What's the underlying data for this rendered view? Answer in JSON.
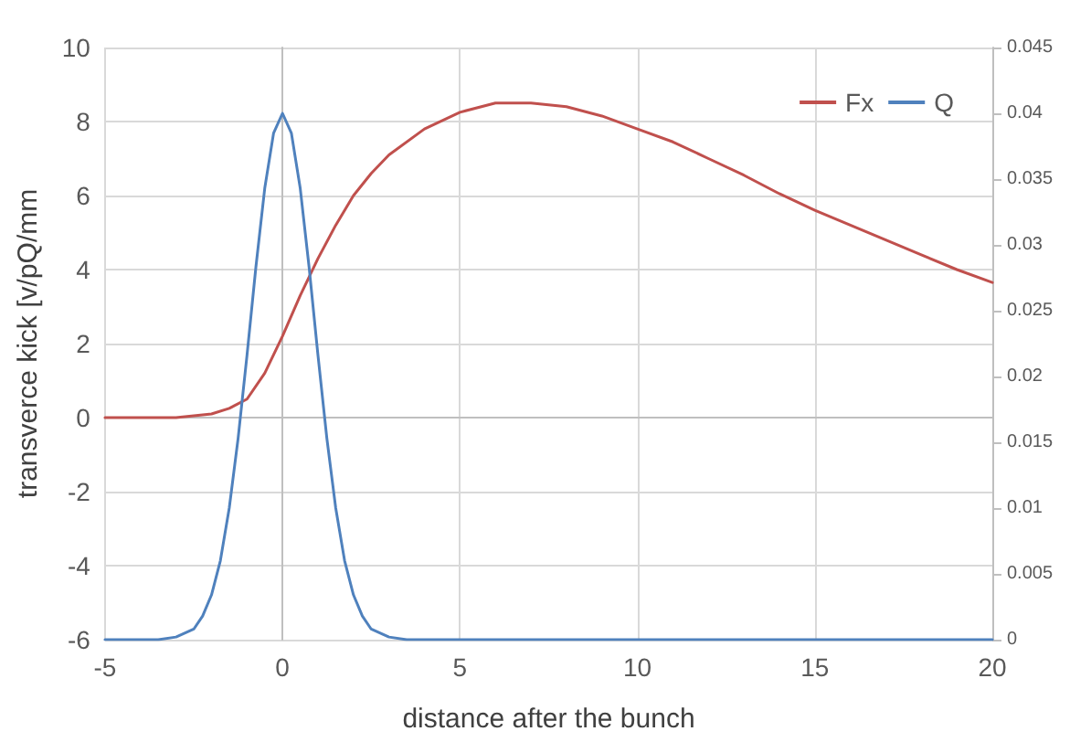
{
  "chart_data": {
    "type": "line",
    "xlabel": "distance after the bunch",
    "ylabel": "transverce kick [v/pQ/mm",
    "xlim": [
      -5,
      20
    ],
    "xticks": [
      -5,
      0,
      5,
      10,
      15,
      20
    ],
    "ylim": [
      -6,
      10
    ],
    "yticks": [
      -6,
      -4,
      -2,
      0,
      2,
      4,
      6,
      8,
      10
    ],
    "y2lim": [
      0,
      0.045
    ],
    "y2ticks": [
      0,
      0.005,
      0.01,
      0.015,
      0.02,
      0.025,
      0.03,
      0.035,
      0.04,
      0.045
    ],
    "grid": true,
    "legend": "top right",
    "marker": "none",
    "line_style": "solid",
    "series": [
      {
        "name": "Fx",
        "color": "#c0504d",
        "x": [
          -5,
          -3,
          -2,
          -1.5,
          -1,
          -0.5,
          0,
          0.5,
          1,
          1.5,
          2,
          2.5,
          3,
          4,
          5,
          6,
          7,
          8,
          9,
          10,
          11,
          12,
          13,
          14,
          15,
          16,
          17,
          18,
          19,
          20
        ],
        "values": [
          0,
          0,
          0.1,
          0.25,
          0.5,
          1.2,
          2.2,
          3.3,
          4.3,
          5.2,
          6.0,
          6.6,
          7.1,
          7.8,
          8.25,
          8.5,
          8.5,
          8.4,
          8.15,
          7.8,
          7.45,
          7.0,
          6.55,
          6.05,
          5.6,
          5.2,
          4.8,
          4.4,
          4.0,
          3.65
        ]
      },
      {
        "name": "Q",
        "color": "#4f81bd",
        "axis": "y2",
        "x": [
          -5,
          -3.5,
          -3,
          -2.5,
          -2.25,
          -2,
          -1.75,
          -1.5,
          -1.25,
          -1,
          -0.75,
          -0.5,
          -0.25,
          0,
          0.25,
          0.5,
          0.75,
          1,
          1.25,
          1.5,
          1.75,
          2,
          2.25,
          2.5,
          3,
          3.5,
          5,
          10,
          15,
          20
        ],
        "values": [
          0,
          0,
          0.0002,
          0.0008,
          0.0018,
          0.0034,
          0.006,
          0.01,
          0.0153,
          0.0216,
          0.0283,
          0.0343,
          0.0385,
          0.04,
          0.0385,
          0.0343,
          0.0283,
          0.0216,
          0.0153,
          0.01,
          0.006,
          0.0034,
          0.0018,
          0.0008,
          0.0002,
          0,
          0,
          0,
          0,
          0
        ]
      }
    ]
  }
}
